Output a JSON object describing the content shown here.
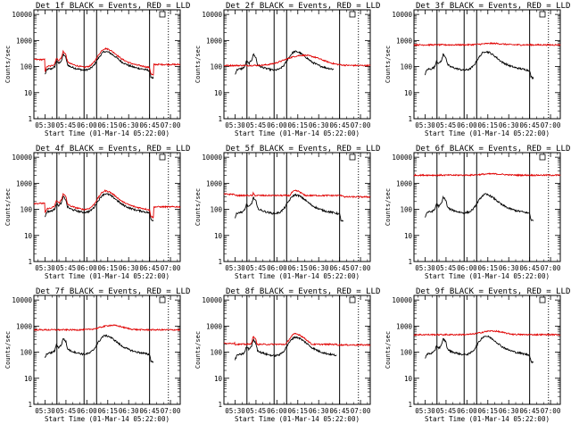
{
  "chart_data": {
    "type": "line",
    "shared": {
      "xlabel": "Start Time (01-Mar-14 05:22:00)",
      "ylabel": "Counts/sec",
      "x_tick_labels": [
        "05:30",
        "05:45",
        "06:00",
        "06:15",
        "06:30",
        "06:45",
        "07:00"
      ],
      "x_tick_minutes": [
        30,
        45,
        60,
        75,
        90,
        105,
        120
      ],
      "xlim_minutes": [
        22,
        127
      ],
      "y_scale": "log",
      "ylim": [
        1,
        15000
      ],
      "y_tick_values": [
        1,
        10,
        100,
        1000,
        10000
      ],
      "y_tick_labels": [
        "1",
        "10",
        "100",
        "1000",
        "10000"
      ],
      "solid_vlines_minutes": [
        38.5,
        58,
        67,
        105
      ],
      "dotted_vlines_minutes": [
        118.5
      ],
      "series_colors": {
        "events": "#000000",
        "lld": "#e00000"
      }
    },
    "panels": [
      {
        "title": "Det 1f BLACK = Events, RED = LLD",
        "events": {
          "start": 30,
          "end": 108,
          "scale": 1.0
        },
        "lld": {
          "type": "tracking",
          "start": 22,
          "end": 127,
          "pre": 185,
          "post": 120,
          "factor": 1.3,
          "floor": 0
        }
      },
      {
        "title": "Det 2f BLACK = Events, RED = LLD",
        "events": {
          "start": 30,
          "end": 101,
          "scale": 1.0
        },
        "lld": {
          "type": "hump",
          "start": 22,
          "end": 127,
          "base": 110,
          "peak": 270,
          "center": 79,
          "width": 15
        }
      },
      {
        "title": "Det 3f BLACK = Events, RED = LLD",
        "events": {
          "start": 30,
          "end": 108,
          "scale": 1.0
        },
        "lld": {
          "type": "flat",
          "start": 22,
          "end": 127,
          "level": 680,
          "bump": 90,
          "bump_center": 78
        }
      },
      {
        "title": "Det 4f BLACK = Events, RED = LLD",
        "events": {
          "start": 30,
          "end": 108,
          "scale": 1.05
        },
        "lld": {
          "type": "tracking",
          "start": 22,
          "end": 127,
          "pre": 170,
          "post": 125,
          "factor": 1.3,
          "floor": 0
        }
      },
      {
        "title": "Det 5f BLACK = Events, RED = LLD",
        "events": {
          "start": 30,
          "end": 108,
          "scale": 0.95
        },
        "lld": {
          "type": "tracking",
          "start": 22,
          "end": 127,
          "pre": 380,
          "post": 300,
          "factor": 1.45,
          "floor": 340
        }
      },
      {
        "title": "Det 6f BLACK = Events, RED = LLD",
        "events": {
          "start": 30,
          "end": 108,
          "scale": 1.0
        },
        "lld": {
          "type": "flat",
          "start": 22,
          "end": 127,
          "level": 2050,
          "bump": 250,
          "bump_center": 78
        }
      },
      {
        "title": "Det 7f BLACK = Events, RED = LLD",
        "events": {
          "start": 30,
          "end": 108,
          "scale": 1.15
        },
        "lld": {
          "type": "flat",
          "start": 22,
          "end": 127,
          "level": 720,
          "bump": 350,
          "bump_center": 78
        }
      },
      {
        "title": "Det 8f BLACK = Events, RED = LLD",
        "events": {
          "start": 30,
          "end": 103,
          "scale": 1.0
        },
        "lld": {
          "type": "tracking",
          "start": 22,
          "end": 127,
          "pre": 220,
          "post": 190,
          "factor": 1.35,
          "floor": 200
        }
      },
      {
        "title": "Det 9f BLACK = Events, RED = LLD",
        "events": {
          "start": 30,
          "end": 108,
          "scale": 1.1
        },
        "lld": {
          "type": "flat",
          "start": 22,
          "end": 127,
          "level": 470,
          "bump": 180,
          "bump_center": 78
        }
      }
    ],
    "event_profile_keypoints": [
      [
        30,
        50
      ],
      [
        31,
        70
      ],
      [
        32,
        80
      ],
      [
        34,
        80
      ],
      [
        36,
        90
      ],
      [
        37,
        100
      ],
      [
        38,
        160
      ],
      [
        40,
        130
      ],
      [
        42,
        180
      ],
      [
        43,
        300
      ],
      [
        45,
        220
      ],
      [
        46,
        120
      ],
      [
        48,
        100
      ],
      [
        52,
        85
      ],
      [
        55,
        78
      ],
      [
        58,
        72
      ],
      [
        62,
        80
      ],
      [
        65,
        110
      ],
      [
        68,
        200
      ],
      [
        71,
        330
      ],
      [
        73,
        380
      ],
      [
        76,
        350
      ],
      [
        80,
        250
      ],
      [
        85,
        150
      ],
      [
        90,
        110
      ],
      [
        95,
        90
      ],
      [
        100,
        80
      ],
      [
        105,
        70
      ],
      [
        106,
        40
      ],
      [
        108,
        35
      ]
    ]
  }
}
